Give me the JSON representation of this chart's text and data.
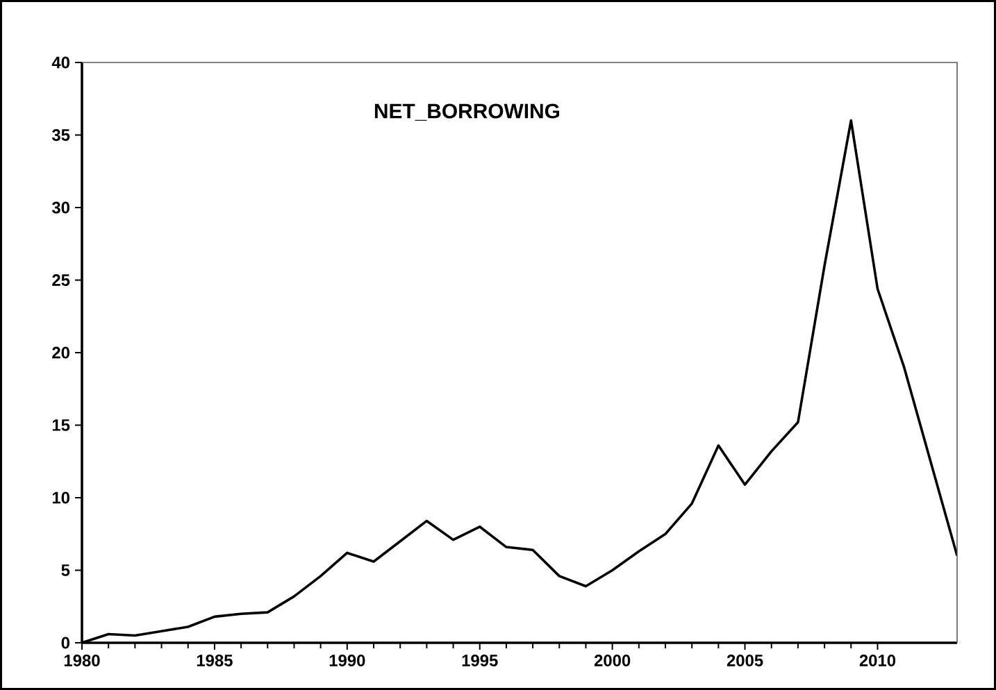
{
  "chart_data": {
    "type": "line",
    "title": "NET_BORROWING",
    "x": [
      1980,
      1981,
      1982,
      1983,
      1984,
      1985,
      1986,
      1987,
      1988,
      1989,
      1990,
      1991,
      1992,
      1993,
      1994,
      1995,
      1996,
      1997,
      1998,
      1999,
      2000,
      2001,
      2002,
      2003,
      2004,
      2005,
      2006,
      2007,
      2008,
      2009,
      2010,
      2011,
      2012,
      2013
    ],
    "series": [
      {
        "color": "#000000",
        "values": [
          0,
          0.6,
          0.5,
          0.8,
          1.1,
          1.8,
          2.0,
          2.1,
          3.2,
          4.6,
          6.2,
          5.6,
          7.0,
          8.4,
          7.1,
          8.0,
          6.6,
          6.4,
          4.6,
          3.9,
          5.0,
          6.3,
          7.5,
          9.6,
          13.6,
          10.9,
          13.2,
          15.2,
          26,
          36,
          24.4,
          19,
          12.5,
          6
        ]
      }
    ],
    "xlim": [
      1980,
      2013
    ],
    "xticks": [
      1980,
      1985,
      1990,
      1995,
      2000,
      2005,
      2010
    ],
    "ylim": [
      0,
      40
    ],
    "yticks": [
      0,
      5,
      10,
      15,
      20,
      25,
      30,
      35,
      40
    ],
    "marker": "none",
    "line_style": "solid"
  }
}
